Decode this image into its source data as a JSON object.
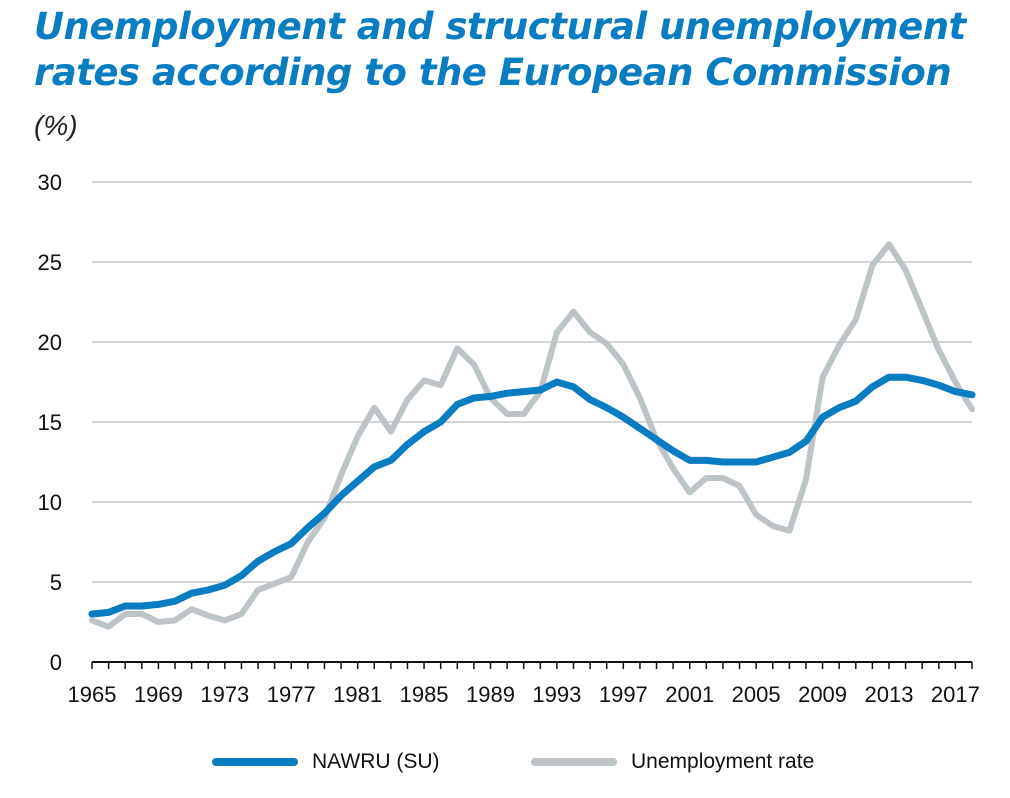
{
  "title": {
    "line1": "Unemployment and structural unemployment",
    "line2": "rates according to the European Commission"
  },
  "unit_label": "(%)",
  "colors": {
    "nawru": "#0a7cc2",
    "unemployment": "#bcc4c8",
    "grid": "#c8c8c8",
    "axis": "#111111",
    "title": "#0a7cc2"
  },
  "legend": [
    {
      "label": "NAWRU (SU)",
      "color": "#0a7cc2"
    },
    {
      "label": "Unemployment rate",
      "color": "#bcc4c8"
    }
  ],
  "chart_data": {
    "type": "line",
    "ylabel": "(%)",
    "xlim": [
      1965,
      2018
    ],
    "ylim": [
      0,
      30
    ],
    "y_ticks": [
      0,
      5,
      10,
      15,
      20,
      25,
      30
    ],
    "x_tick_labels": [
      "1965",
      "1969",
      "1973",
      "1977",
      "1981",
      "1985",
      "1989",
      "1993",
      "1997",
      "2001",
      "2005",
      "2009",
      "2013",
      "2017"
    ],
    "grid": true,
    "legend_position": "bottom",
    "x": [
      1965,
      1966,
      1967,
      1968,
      1969,
      1970,
      1971,
      1972,
      1973,
      1974,
      1975,
      1976,
      1977,
      1978,
      1979,
      1980,
      1981,
      1982,
      1983,
      1984,
      1985,
      1986,
      1987,
      1988,
      1989,
      1990,
      1991,
      1992,
      1993,
      1994,
      1995,
      1996,
      1997,
      1998,
      1999,
      2000,
      2001,
      2002,
      2003,
      2004,
      2005,
      2006,
      2007,
      2008,
      2009,
      2010,
      2011,
      2012,
      2013,
      2014,
      2015,
      2016,
      2017,
      2018
    ],
    "series": [
      {
        "name": "NAWRU (SU)",
        "values": [
          3.0,
          3.1,
          3.5,
          3.5,
          3.6,
          3.8,
          4.3,
          4.5,
          4.8,
          5.4,
          6.3,
          6.9,
          7.4,
          8.4,
          9.3,
          10.4,
          11.3,
          12.2,
          12.6,
          13.6,
          14.4,
          15.0,
          16.1,
          16.5,
          16.6,
          16.8,
          16.9,
          17.0,
          17.5,
          17.2,
          16.4,
          15.9,
          15.3,
          14.6,
          13.9,
          13.2,
          12.6,
          12.6,
          12.5,
          12.5,
          12.5,
          12.8,
          13.1,
          13.8,
          15.3,
          15.9,
          16.3,
          17.2,
          17.8,
          17.8,
          17.6,
          17.3,
          16.9,
          16.7
        ]
      },
      {
        "name": "Unemployment rate",
        "values": [
          2.6,
          2.2,
          3.0,
          3.0,
          2.5,
          2.6,
          3.3,
          2.9,
          2.6,
          3.0,
          4.5,
          4.9,
          5.3,
          7.5,
          9.0,
          11.7,
          14.1,
          15.9,
          14.4,
          16.4,
          17.6,
          17.3,
          19.6,
          18.6,
          16.5,
          15.5,
          15.5,
          16.9,
          20.6,
          21.9,
          20.6,
          19.9,
          18.6,
          16.5,
          13.9,
          12.1,
          10.6,
          11.5,
          11.5,
          11.0,
          9.2,
          8.5,
          8.2,
          11.4,
          17.8,
          19.8,
          21.4,
          24.8,
          26.1,
          24.5,
          22.0,
          19.5,
          17.5,
          15.8
        ]
      }
    ]
  }
}
